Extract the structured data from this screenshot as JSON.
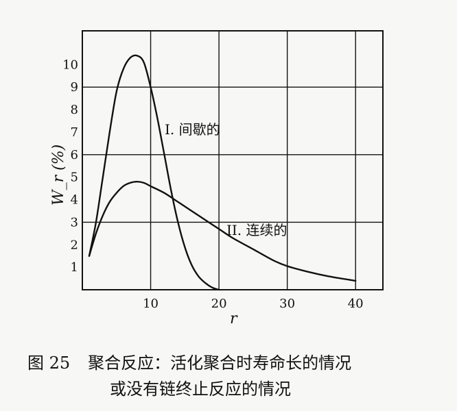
{
  "chart_data": {
    "type": "line",
    "xlabel": "r",
    "ylabel": "W_r (%)",
    "xlim": [
      0,
      44
    ],
    "ylim": [
      0,
      11.5
    ],
    "x_ticks": [
      10,
      20,
      30,
      40
    ],
    "y_ticks": [
      1,
      2,
      3,
      4,
      5,
      6,
      7,
      8,
      9,
      10
    ],
    "grid": true,
    "series": [
      {
        "name": "I. 间歇的",
        "x": [
          1,
          2,
          3,
          4,
          5,
          6,
          7,
          8,
          9,
          10,
          11,
          12,
          13,
          14,
          15,
          16,
          17,
          18,
          19,
          20
        ],
        "values": [
          1.5,
          3.0,
          5.0,
          7.0,
          8.8,
          9.8,
          10.3,
          10.4,
          10.1,
          9.0,
          7.6,
          6.0,
          4.4,
          3.0,
          1.9,
          1.1,
          0.6,
          0.3,
          0.1,
          0.0
        ]
      },
      {
        "name": "II. 连续的",
        "x": [
          1,
          2,
          3,
          4,
          5,
          6,
          7,
          8,
          9,
          10,
          12,
          14,
          16,
          18,
          20,
          22,
          25,
          28,
          30,
          33,
          36,
          40
        ],
        "values": [
          1.5,
          2.5,
          3.3,
          3.9,
          4.3,
          4.6,
          4.75,
          4.8,
          4.75,
          4.6,
          4.3,
          3.9,
          3.5,
          3.1,
          2.7,
          2.3,
          1.8,
          1.3,
          1.05,
          0.8,
          0.6,
          0.4
        ]
      }
    ],
    "annotations": [
      "I. 间歇的",
      "II.  连续的"
    ]
  },
  "caption": {
    "figure_number": "图 25",
    "line1": "聚合反应：活化聚合时寿命长的情况",
    "line2": "或没有链终止反应的情况"
  }
}
